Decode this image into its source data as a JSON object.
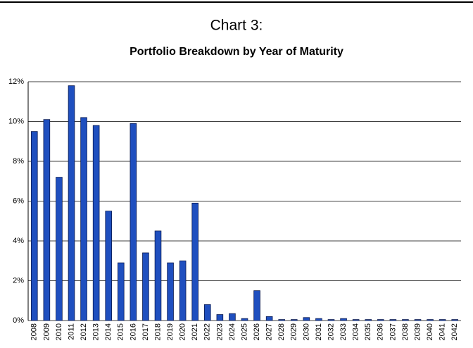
{
  "chart_data": {
    "type": "bar",
    "title": "Chart 3:",
    "subtitle": "Portfolio Breakdown by Year of Maturity",
    "categories": [
      "2008",
      "2009",
      "2010",
      "2011",
      "2012",
      "2013",
      "2014",
      "2015",
      "2016",
      "2017",
      "2018",
      "2019",
      "2020",
      "2021",
      "2022",
      "2023",
      "2024",
      "2025",
      "2026",
      "2027",
      "2028",
      "2029",
      "2030",
      "2031",
      "2032",
      "2033",
      "2034",
      "2035",
      "2036",
      "2037",
      "2038",
      "2039",
      "2040",
      "2041",
      "2042"
    ],
    "values": [
      9.5,
      10.1,
      7.2,
      11.8,
      10.2,
      9.8,
      5.5,
      2.9,
      9.9,
      3.4,
      4.5,
      2.9,
      3.0,
      5.9,
      0.8,
      0.3,
      0.35,
      0.1,
      1.5,
      0.2,
      0.05,
      0.05,
      0.15,
      0.1,
      0.05,
      0.1,
      0.05,
      0.05,
      0.05,
      0.05,
      0.05,
      0.05,
      0.05,
      0.05,
      0.05
    ],
    "color": "#1f4fbf",
    "ylim": [
      0,
      12
    ],
    "yticks": [
      {
        "value": 0,
        "label": "0%"
      },
      {
        "value": 2,
        "label": "2%"
      },
      {
        "value": 4,
        "label": "4%"
      },
      {
        "value": 6,
        "label": "6%"
      },
      {
        "value": 8,
        "label": "8%"
      },
      {
        "value": 10,
        "label": "10%"
      },
      {
        "value": 12,
        "label": "12%"
      }
    ],
    "grid": true
  }
}
